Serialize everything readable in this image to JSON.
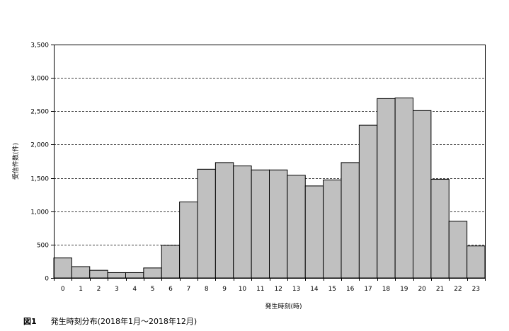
{
  "chart_data": {
    "type": "bar",
    "categories": [
      "0",
      "1",
      "2",
      "3",
      "4",
      "5",
      "6",
      "7",
      "8",
      "9",
      "10",
      "11",
      "12",
      "13",
      "14",
      "15",
      "16",
      "17",
      "18",
      "19",
      "20",
      "21",
      "22",
      "23"
    ],
    "values": [
      300,
      170,
      115,
      80,
      80,
      150,
      490,
      1140,
      1630,
      1730,
      1680,
      1620,
      1620,
      1540,
      1380,
      1470,
      1730,
      2290,
      2690,
      2700,
      2510,
      1480,
      850,
      480
    ],
    "ylim": [
      0,
      3500
    ],
    "yticks": [
      0,
      500,
      1000,
      1500,
      2000,
      2500,
      3000,
      3500
    ],
    "ytick_labels": [
      "0",
      "500",
      "1,000",
      "1,500",
      "2,000",
      "2,500",
      "3,000",
      "3,500"
    ],
    "xlabel": "発生時刻(時)",
    "ylabel": "受信件数(件)",
    "grid": "horizontal-dashed",
    "bar_color": "#c0c0c0",
    "bar_edge_color": "#000000"
  },
  "caption": {
    "figure_number": "図1",
    "text": "発生時刻分布(2018年1月〜2018年12月)"
  }
}
